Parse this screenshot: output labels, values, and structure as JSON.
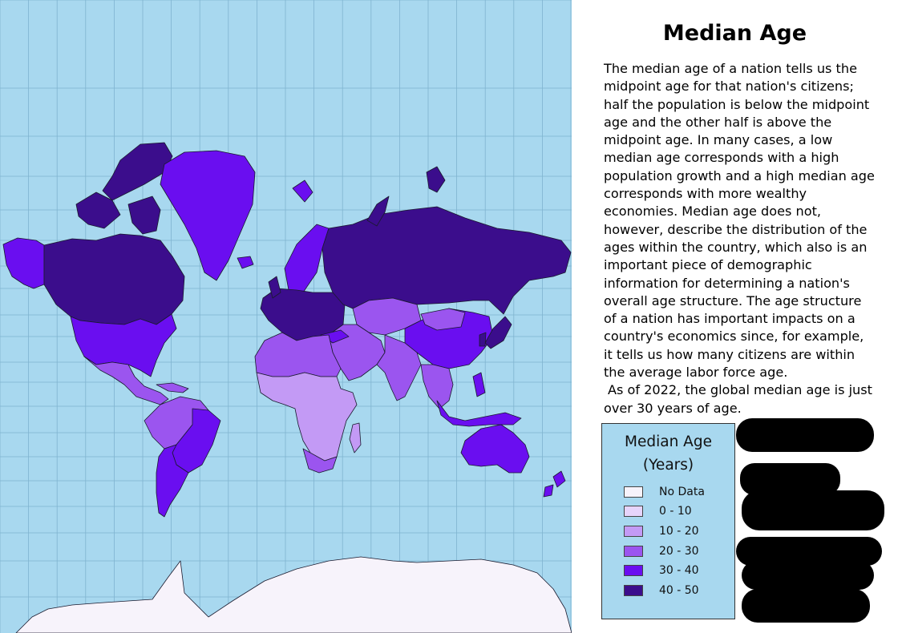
{
  "title": "Median Age",
  "description": {
    "p1": "The median age of a nation tells us the midpoint age for that nation's citizens; half the population is below the midpoint age and the other half is above the midpoint age. In many cases, a low median age corresponds with a high population growth and a high median age corresponds with more wealthy economies. Median age does not, however, describe the distribution of the ages within the country, which also is an important piece of demographic information for determining a nation's overall age structure. The age structure of a nation has important impacts on a country's economics since, for example, it tells us how many citizens are within the average labor force age.",
    "p2": "As of 2022, the global median age is just over 30 years of age."
  },
  "legend": {
    "title_line1": "Median Age",
    "title_line2": "(Years)",
    "items": [
      {
        "label": "No Data",
        "color": "#f7f3fb"
      },
      {
        "label": "0 - 10",
        "color": "#e6d4fb"
      },
      {
        "label": "10 - 20",
        "color": "#c39af5"
      },
      {
        "label": "20 - 30",
        "color": "#9b55ef"
      },
      {
        "label": "30 - 40",
        "color": "#6a0ef0"
      },
      {
        "label": "40 - 50",
        "color": "#3b0d8c"
      }
    ]
  },
  "colors": {
    "ocean": "#a8d8ef",
    "grid": "#7fb3cf",
    "outline": "#1a1a2e"
  },
  "map": {
    "projection": "mercator",
    "graticule": "10-degree",
    "classes": {
      "canada": "40 - 50",
      "alaska": "30 - 40",
      "usa": "30 - 40",
      "greenland": "30 - 40",
      "mexico_central_america": "20 - 30",
      "northern_south_america": "20 - 30",
      "brazil": "30 - 40",
      "southern_south_america": "30 - 40",
      "europe": "40 - 50",
      "russia": "40 - 50",
      "china": "30 - 40",
      "japan": "40 - 50",
      "central_asia": "20 - 30",
      "middle_east": "20 - 30",
      "india": "20 - 30",
      "southeast_asia": "30 - 40",
      "north_africa": "20 - 30",
      "sub_saharan_africa": "10 - 20",
      "southern_africa": "20 - 30",
      "australia": "30 - 40",
      "new_zealand": "30 - 40",
      "antarctica": "No Data"
    }
  }
}
